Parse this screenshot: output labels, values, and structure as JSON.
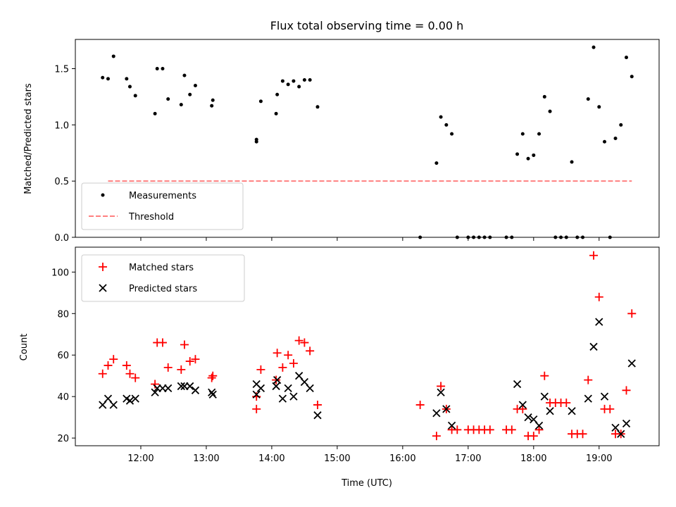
{
  "chart_data": [
    {
      "type": "scatter",
      "title": "Flux total observing time = 0.00 h",
      "xlabel": "",
      "ylabel": "Matched/Predicted stars",
      "xlim": [
        "11:00",
        "19:55"
      ],
      "ylim": [
        0,
        1.76
      ],
      "x_ticks": [
        "12:00",
        "13:00",
        "14:00",
        "15:00",
        "16:00",
        "17:00",
        "18:00",
        "19:00"
      ],
      "x_ticklabels_shown": false,
      "y_ticks": [
        0.0,
        0.5,
        1.0,
        1.5
      ],
      "y_ticklabels": [
        "0.0",
        "0.5",
        "1.0",
        "1.5"
      ],
      "grid": false,
      "legend": "lower-left",
      "series": [
        {
          "name": "Measurements",
          "marker": "dot",
          "color": "#000000",
          "points": [
            [
              "11:25",
              1.42
            ],
            [
              "11:30",
              1.41
            ],
            [
              "11:35",
              1.61
            ],
            [
              "11:47",
              1.41
            ],
            [
              "11:50",
              1.34
            ],
            [
              "11:55",
              1.26
            ],
            [
              "12:13",
              1.1
            ],
            [
              "12:15",
              1.5
            ],
            [
              "12:20",
              1.5
            ],
            [
              "12:25",
              1.23
            ],
            [
              "12:37",
              1.18
            ],
            [
              "12:40",
              1.44
            ],
            [
              "12:45",
              1.27
            ],
            [
              "12:50",
              1.35
            ],
            [
              "13:05",
              1.17
            ],
            [
              "13:06",
              1.22
            ],
            [
              "13:46",
              0.85
            ],
            [
              "13:46",
              0.87
            ],
            [
              "13:50",
              1.21
            ],
            [
              "14:04",
              1.1
            ],
            [
              "14:05",
              1.27
            ],
            [
              "14:10",
              1.39
            ],
            [
              "14:15",
              1.36
            ],
            [
              "14:20",
              1.39
            ],
            [
              "14:25",
              1.34
            ],
            [
              "14:30",
              1.4
            ],
            [
              "14:35",
              1.4
            ],
            [
              "14:42",
              1.16
            ],
            [
              "16:16",
              0.0
            ],
            [
              "16:31",
              0.66
            ],
            [
              "16:35",
              1.07
            ],
            [
              "16:40",
              1.0
            ],
            [
              "16:45",
              0.92
            ],
            [
              "16:50",
              0.0
            ],
            [
              "17:00",
              0.0
            ],
            [
              "17:05",
              0.0
            ],
            [
              "17:10",
              0.0
            ],
            [
              "17:15",
              0.0
            ],
            [
              "17:20",
              0.0
            ],
            [
              "17:35",
              0.0
            ],
            [
              "17:40",
              0.0
            ],
            [
              "17:45",
              0.74
            ],
            [
              "17:50",
              0.92
            ],
            [
              "17:55",
              0.7
            ],
            [
              "18:00",
              0.73
            ],
            [
              "18:05",
              0.92
            ],
            [
              "18:10",
              1.25
            ],
            [
              "18:15",
              1.12
            ],
            [
              "18:20",
              0.0
            ],
            [
              "18:25",
              0.0
            ],
            [
              "18:30",
              0.0
            ],
            [
              "18:35",
              0.67
            ],
            [
              "18:40",
              0.0
            ],
            [
              "18:45",
              0.0
            ],
            [
              "18:50",
              1.23
            ],
            [
              "18:55",
              1.69
            ],
            [
              "19:00",
              1.16
            ],
            [
              "19:05",
              0.85
            ],
            [
              "19:10",
              0.0
            ],
            [
              "19:15",
              0.88
            ],
            [
              "19:20",
              1.0
            ],
            [
              "19:25",
              1.6
            ],
            [
              "19:30",
              1.43
            ]
          ]
        },
        {
          "name": "Threshold",
          "style": "dashed",
          "color": "#ff8080",
          "points": [
            [
              "11:30",
              0.5
            ],
            [
              "19:30",
              0.5
            ]
          ]
        }
      ]
    },
    {
      "type": "scatter",
      "title": "",
      "xlabel": "Time (UTC)",
      "ylabel": "Count",
      "xlim": [
        "11:00",
        "19:55"
      ],
      "ylim": [
        16.3,
        112
      ],
      "x_ticks": [
        "12:00",
        "13:00",
        "14:00",
        "15:00",
        "16:00",
        "17:00",
        "18:00",
        "19:00"
      ],
      "x_ticklabels": [
        "12:00",
        "13:00",
        "14:00",
        "15:00",
        "16:00",
        "17:00",
        "18:00",
        "19:00"
      ],
      "y_ticks": [
        20,
        40,
        60,
        80,
        100
      ],
      "y_ticklabels": [
        "20",
        "40",
        "60",
        "80",
        "100"
      ],
      "grid": false,
      "legend": "upper-left",
      "series": [
        {
          "name": "Matched stars",
          "marker": "plus",
          "color": "#ff0000",
          "points": [
            [
              "11:25",
              51
            ],
            [
              "11:30",
              55
            ],
            [
              "11:35",
              58
            ],
            [
              "11:47",
              55
            ],
            [
              "11:50",
              51
            ],
            [
              "11:55",
              49
            ],
            [
              "12:13",
              46
            ],
            [
              "12:15",
              66
            ],
            [
              "12:20",
              66
            ],
            [
              "12:25",
              54
            ],
            [
              "12:37",
              53
            ],
            [
              "12:40",
              65
            ],
            [
              "12:45",
              57
            ],
            [
              "12:50",
              58
            ],
            [
              "13:05",
              49
            ],
            [
              "13:06",
              50
            ],
            [
              "13:46",
              34
            ],
            [
              "13:46",
              40
            ],
            [
              "13:50",
              53
            ],
            [
              "14:04",
              48
            ],
            [
              "14:05",
              61
            ],
            [
              "14:10",
              54
            ],
            [
              "14:15",
              60
            ],
            [
              "14:20",
              56
            ],
            [
              "14:25",
              67
            ],
            [
              "14:30",
              66
            ],
            [
              "14:35",
              62
            ],
            [
              "14:42",
              36
            ],
            [
              "16:16",
              36
            ],
            [
              "16:31",
              21
            ],
            [
              "16:35",
              45
            ],
            [
              "16:40",
              34
            ],
            [
              "16:45",
              24
            ],
            [
              "16:50",
              24
            ],
            [
              "17:00",
              24
            ],
            [
              "17:05",
              24
            ],
            [
              "17:10",
              24
            ],
            [
              "17:15",
              24
            ],
            [
              "17:20",
              24
            ],
            [
              "17:35",
              24
            ],
            [
              "17:40",
              24
            ],
            [
              "17:45",
              34
            ],
            [
              "17:50",
              34
            ],
            [
              "17:55",
              21
            ],
            [
              "18:00",
              21
            ],
            [
              "18:05",
              24
            ],
            [
              "18:10",
              50
            ],
            [
              "18:15",
              37
            ],
            [
              "18:20",
              37
            ],
            [
              "18:25",
              37
            ],
            [
              "18:30",
              37
            ],
            [
              "18:35",
              22
            ],
            [
              "18:40",
              22
            ],
            [
              "18:45",
              22
            ],
            [
              "18:50",
              48
            ],
            [
              "18:55",
              108
            ],
            [
              "19:00",
              88
            ],
            [
              "19:05",
              34
            ],
            [
              "19:10",
              34
            ],
            [
              "19:15",
              22
            ],
            [
              "19:20",
              22
            ],
            [
              "19:25",
              43
            ],
            [
              "19:30",
              80
            ]
          ]
        },
        {
          "name": "Predicted stars",
          "marker": "x",
          "color": "#000000",
          "points": [
            [
              "11:25",
              36
            ],
            [
              "11:30",
              39
            ],
            [
              "11:35",
              36
            ],
            [
              "11:47",
              39
            ],
            [
              "11:50",
              38
            ],
            [
              "11:55",
              39
            ],
            [
              "12:13",
              42
            ],
            [
              "12:15",
              44
            ],
            [
              "12:20",
              44
            ],
            [
              "12:25",
              44
            ],
            [
              "12:37",
              45
            ],
            [
              "12:40",
              45
            ],
            [
              "12:45",
              45
            ],
            [
              "12:50",
              43
            ],
            [
              "13:05",
              42
            ],
            [
              "13:06",
              41
            ],
            [
              "13:46",
              46
            ],
            [
              "13:46",
              41
            ],
            [
              "13:50",
              44
            ],
            [
              "14:04",
              45
            ],
            [
              "14:05",
              48
            ],
            [
              "14:10",
              39
            ],
            [
              "14:15",
              44
            ],
            [
              "14:20",
              40
            ],
            [
              "14:25",
              50
            ],
            [
              "14:30",
              47
            ],
            [
              "14:35",
              44
            ],
            [
              "14:42",
              31
            ],
            [
              "16:31",
              32
            ],
            [
              "16:35",
              42
            ],
            [
              "16:40",
              34
            ],
            [
              "16:45",
              26
            ],
            [
              "17:45",
              46
            ],
            [
              "17:50",
              36
            ],
            [
              "17:55",
              30
            ],
            [
              "18:00",
              29
            ],
            [
              "18:05",
              26
            ],
            [
              "18:10",
              40
            ],
            [
              "18:15",
              33
            ],
            [
              "18:35",
              33
            ],
            [
              "18:50",
              39
            ],
            [
              "18:55",
              64
            ],
            [
              "19:00",
              76
            ],
            [
              "19:05",
              40
            ],
            [
              "19:15",
              25
            ],
            [
              "19:20",
              22
            ],
            [
              "19:25",
              27
            ],
            [
              "19:30",
              56
            ]
          ]
        }
      ]
    }
  ]
}
